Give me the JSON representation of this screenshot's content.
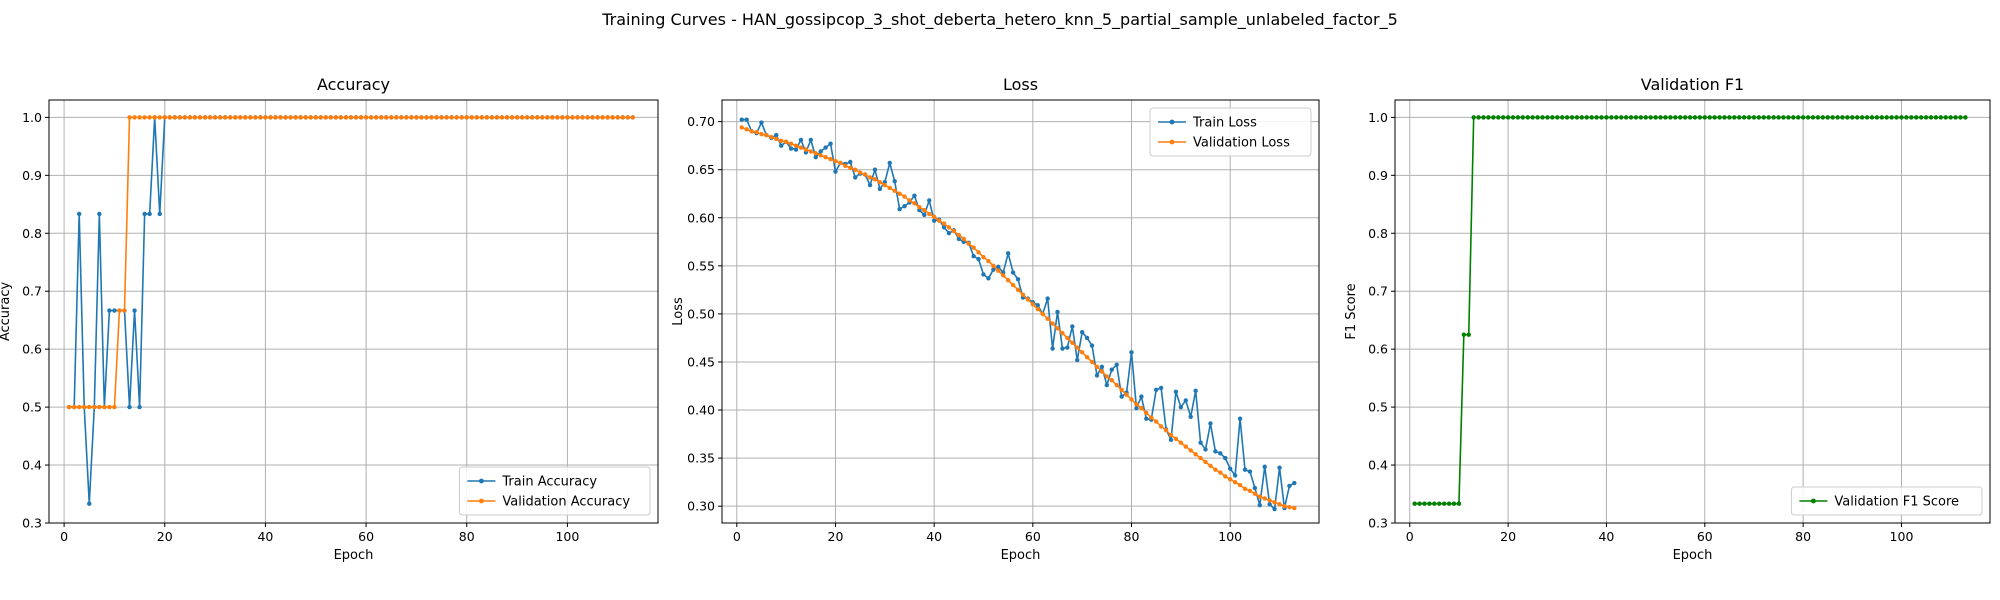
{
  "figure": {
    "suptitle": "Training Curves - HAN_gossipcop_3_shot_deberta_hetero_knn_5_partial_sample_unlabeled_factor_5"
  },
  "colors": {
    "blue": "#1f77b4",
    "orange": "#ff7f0e",
    "green": "#008000",
    "grid": "#b0b0b0"
  },
  "chart_data": [
    {
      "type": "line",
      "title": "Accuracy",
      "xlabel": "Epoch",
      "ylabel": "Accuracy",
      "xlim": [
        -3,
        118
      ],
      "ylim": [
        0.3,
        1.03
      ],
      "xticks": [
        0,
        20,
        40,
        60,
        80,
        100
      ],
      "yticks": [
        0.3,
        0.4,
        0.5,
        0.6,
        0.7,
        0.8,
        0.9,
        1.0
      ],
      "ytick_labels": [
        "0.3",
        "0.4",
        "0.5",
        "0.6",
        "0.7",
        "0.8",
        "0.9",
        "1.0"
      ],
      "grid": true,
      "legend_loc": "lower right",
      "n_epochs": 113,
      "series": [
        {
          "name": "Train Accuracy",
          "color": "#1f77b4",
          "values": [
            0.5,
            0.5,
            0.8333,
            0.5,
            0.3333,
            0.5,
            0.8333,
            0.5,
            0.6667,
            0.6667,
            0.6667,
            0.6667,
            0.5,
            0.6667,
            0.5,
            0.8333,
            0.8333,
            1.0,
            0.8333,
            1.0,
            1.0,
            1.0,
            1.0,
            1.0,
            1.0,
            1.0,
            1.0,
            1.0,
            1.0,
            1.0,
            1.0,
            1.0,
            1.0,
            1.0,
            1.0,
            1.0,
            1.0,
            1.0,
            1.0,
            1.0,
            1.0,
            1.0,
            1.0,
            1.0,
            1.0,
            1.0,
            1.0,
            1.0,
            1.0,
            1.0,
            1.0,
            1.0,
            1.0,
            1.0,
            1.0,
            1.0,
            1.0,
            1.0,
            1.0,
            1.0,
            1.0,
            1.0,
            1.0,
            1.0,
            1.0,
            1.0,
            1.0,
            1.0,
            1.0,
            1.0,
            1.0,
            1.0,
            1.0,
            1.0,
            1.0,
            1.0,
            1.0,
            1.0,
            1.0,
            1.0,
            1.0,
            1.0,
            1.0,
            1.0,
            1.0,
            1.0,
            1.0,
            1.0,
            1.0,
            1.0,
            1.0,
            1.0,
            1.0,
            1.0,
            1.0,
            1.0,
            1.0,
            1.0,
            1.0,
            1.0,
            1.0,
            1.0,
            1.0,
            1.0,
            1.0,
            1.0,
            1.0,
            1.0,
            1.0,
            1.0,
            1.0,
            1.0,
            1.0
          ]
        },
        {
          "name": "Validation Accuracy",
          "color": "#ff7f0e",
          "values": [
            0.5,
            0.5,
            0.5,
            0.5,
            0.5,
            0.5,
            0.5,
            0.5,
            0.5,
            0.5,
            0.6667,
            0.6667,
            1.0,
            1.0,
            1.0,
            1.0,
            1.0,
            1.0,
            1.0,
            1.0,
            1.0,
            1.0,
            1.0,
            1.0,
            1.0,
            1.0,
            1.0,
            1.0,
            1.0,
            1.0,
            1.0,
            1.0,
            1.0,
            1.0,
            1.0,
            1.0,
            1.0,
            1.0,
            1.0,
            1.0,
            1.0,
            1.0,
            1.0,
            1.0,
            1.0,
            1.0,
            1.0,
            1.0,
            1.0,
            1.0,
            1.0,
            1.0,
            1.0,
            1.0,
            1.0,
            1.0,
            1.0,
            1.0,
            1.0,
            1.0,
            1.0,
            1.0,
            1.0,
            1.0,
            1.0,
            1.0,
            1.0,
            1.0,
            1.0,
            1.0,
            1.0,
            1.0,
            1.0,
            1.0,
            1.0,
            1.0,
            1.0,
            1.0,
            1.0,
            1.0,
            1.0,
            1.0,
            1.0,
            1.0,
            1.0,
            1.0,
            1.0,
            1.0,
            1.0,
            1.0,
            1.0,
            1.0,
            1.0,
            1.0,
            1.0,
            1.0,
            1.0,
            1.0,
            1.0,
            1.0,
            1.0,
            1.0,
            1.0,
            1.0,
            1.0,
            1.0,
            1.0,
            1.0,
            1.0,
            1.0,
            1.0,
            1.0,
            1.0
          ]
        }
      ]
    },
    {
      "type": "line",
      "title": "Loss",
      "xlabel": "Epoch",
      "ylabel": "Loss",
      "xlim": [
        -3,
        118
      ],
      "ylim": [
        0.2825,
        0.7225
      ],
      "xticks": [
        0,
        20,
        40,
        60,
        80,
        100
      ],
      "yticks": [
        0.3,
        0.35,
        0.4,
        0.45,
        0.5,
        0.55,
        0.6,
        0.65,
        0.7
      ],
      "ytick_labels": [
        "0.30",
        "0.35",
        "0.40",
        "0.45",
        "0.50",
        "0.55",
        "0.60",
        "0.65",
        "0.70"
      ],
      "grid": true,
      "legend_loc": "upper right",
      "n_epochs": 113,
      "series": [
        {
          "name": "Train Loss",
          "color": "#1f77b4",
          "values": [
            0.702,
            0.702,
            0.69,
            0.688,
            0.699,
            0.686,
            0.683,
            0.686,
            0.675,
            0.679,
            0.672,
            0.671,
            0.681,
            0.668,
            0.681,
            0.663,
            0.669,
            0.673,
            0.677,
            0.648,
            0.657,
            0.656,
            0.658,
            0.642,
            0.646,
            0.645,
            0.634,
            0.65,
            0.63,
            0.637,
            0.657,
            0.638,
            0.609,
            0.612,
            0.616,
            0.623,
            0.608,
            0.603,
            0.618,
            0.597,
            0.598,
            0.59,
            0.584,
            0.587,
            0.578,
            0.575,
            0.574,
            0.56,
            0.557,
            0.541,
            0.537,
            0.546,
            0.549,
            0.543,
            0.563,
            0.543,
            0.536,
            0.517,
            0.516,
            0.512,
            0.509,
            0.5,
            0.516,
            0.464,
            0.502,
            0.464,
            0.465,
            0.487,
            0.452,
            0.481,
            0.475,
            0.467,
            0.436,
            0.445,
            0.426,
            0.442,
            0.447,
            0.414,
            0.418,
            0.46,
            0.402,
            0.414,
            0.391,
            0.39,
            0.421,
            0.423,
            0.38,
            0.369,
            0.419,
            0.403,
            0.41,
            0.393,
            0.42,
            0.366,
            0.359,
            0.386,
            0.357,
            0.355,
            0.35,
            0.339,
            0.332,
            0.391,
            0.338,
            0.336,
            0.319,
            0.301,
            0.341,
            0.302,
            0.297,
            0.34,
            0.298,
            0.321,
            0.324
          ]
        },
        {
          "name": "Validation Loss",
          "color": "#ff7f0e",
          "values": [
            0.694,
            0.692,
            0.69,
            0.689,
            0.687,
            0.686,
            0.684,
            0.682,
            0.68,
            0.679,
            0.677,
            0.675,
            0.673,
            0.671,
            0.669,
            0.667,
            0.665,
            0.663,
            0.661,
            0.659,
            0.657,
            0.654,
            0.652,
            0.65,
            0.647,
            0.645,
            0.642,
            0.64,
            0.637,
            0.634,
            0.631,
            0.628,
            0.625,
            0.622,
            0.618,
            0.615,
            0.611,
            0.608,
            0.604,
            0.601,
            0.597,
            0.594,
            0.59,
            0.586,
            0.582,
            0.578,
            0.573,
            0.569,
            0.564,
            0.559,
            0.555,
            0.55,
            0.545,
            0.54,
            0.535,
            0.53,
            0.525,
            0.52,
            0.515,
            0.51,
            0.505,
            0.5,
            0.495,
            0.49,
            0.485,
            0.48,
            0.475,
            0.47,
            0.465,
            0.46,
            0.455,
            0.45,
            0.445,
            0.44,
            0.435,
            0.431,
            0.426,
            0.421,
            0.416,
            0.411,
            0.406,
            0.402,
            0.397,
            0.392,
            0.388,
            0.383,
            0.379,
            0.374,
            0.37,
            0.366,
            0.362,
            0.358,
            0.354,
            0.35,
            0.346,
            0.342,
            0.338,
            0.335,
            0.331,
            0.328,
            0.325,
            0.322,
            0.318,
            0.316,
            0.313,
            0.31,
            0.308,
            0.306,
            0.304,
            0.302,
            0.3,
            0.299,
            0.298
          ]
        }
      ]
    },
    {
      "type": "line",
      "title": "Validation F1",
      "xlabel": "Epoch",
      "ylabel": "F1 Score",
      "xlim": [
        -3,
        118
      ],
      "ylim": [
        0.3,
        1.03
      ],
      "xticks": [
        0,
        20,
        40,
        60,
        80,
        100
      ],
      "yticks": [
        0.3,
        0.4,
        0.5,
        0.6,
        0.7,
        0.8,
        0.9,
        1.0
      ],
      "ytick_labels": [
        "0.3",
        "0.4",
        "0.5",
        "0.6",
        "0.7",
        "0.8",
        "0.9",
        "1.0"
      ],
      "grid": true,
      "legend_loc": "lower right",
      "n_epochs": 113,
      "series": [
        {
          "name": "Validation F1 Score",
          "color": "#008000",
          "values": [
            0.3333,
            0.3333,
            0.3333,
            0.3333,
            0.3333,
            0.3333,
            0.3333,
            0.3333,
            0.3333,
            0.3333,
            0.625,
            0.625,
            1.0,
            1.0,
            1.0,
            1.0,
            1.0,
            1.0,
            1.0,
            1.0,
            1.0,
            1.0,
            1.0,
            1.0,
            1.0,
            1.0,
            1.0,
            1.0,
            1.0,
            1.0,
            1.0,
            1.0,
            1.0,
            1.0,
            1.0,
            1.0,
            1.0,
            1.0,
            1.0,
            1.0,
            1.0,
            1.0,
            1.0,
            1.0,
            1.0,
            1.0,
            1.0,
            1.0,
            1.0,
            1.0,
            1.0,
            1.0,
            1.0,
            1.0,
            1.0,
            1.0,
            1.0,
            1.0,
            1.0,
            1.0,
            1.0,
            1.0,
            1.0,
            1.0,
            1.0,
            1.0,
            1.0,
            1.0,
            1.0,
            1.0,
            1.0,
            1.0,
            1.0,
            1.0,
            1.0,
            1.0,
            1.0,
            1.0,
            1.0,
            1.0,
            1.0,
            1.0,
            1.0,
            1.0,
            1.0,
            1.0,
            1.0,
            1.0,
            1.0,
            1.0,
            1.0,
            1.0,
            1.0,
            1.0,
            1.0,
            1.0,
            1.0,
            1.0,
            1.0,
            1.0,
            1.0,
            1.0,
            1.0,
            1.0,
            1.0,
            1.0,
            1.0,
            1.0,
            1.0,
            1.0,
            1.0,
            1.0,
            1.0
          ]
        }
      ]
    }
  ]
}
